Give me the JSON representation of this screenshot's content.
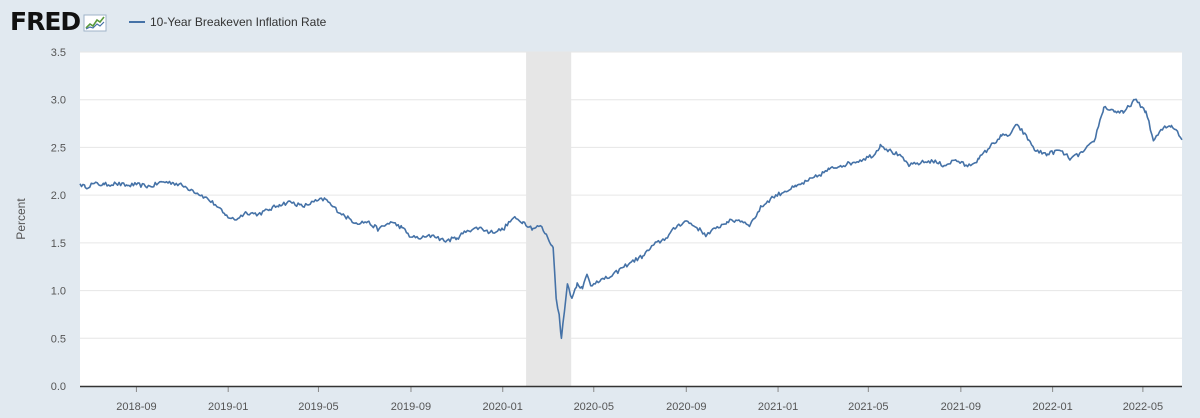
{
  "header": {
    "logo_text": "FRED",
    "logo_icon": "chart-line-icon"
  },
  "colors": {
    "series": "#4572a7",
    "background": "#e1e9f0",
    "plot_bg": "#ffffff",
    "recession": "#e6e6e6",
    "grid": "#e6e6e6"
  },
  "chart_data": {
    "type": "line",
    "title": "",
    "xlabel": "",
    "ylabel": "Percent",
    "ylim": [
      0,
      3.5
    ],
    "yticks": [
      "0.0",
      "0.5",
      "1.0",
      "1.5",
      "2.0",
      "2.5",
      "3.0",
      "3.5"
    ],
    "xlim": [
      "2018-06-18",
      "2022-06-22"
    ],
    "xticks": [
      "2018-09",
      "2019-01",
      "2019-05",
      "2019-09",
      "2020-01",
      "2020-05",
      "2020-09",
      "2021-01",
      "2021-05",
      "2021-09",
      "2022-01",
      "2022-05"
    ],
    "grid": true,
    "legend": "top-left",
    "recession_band": [
      "2020-02-01",
      "2020-04-01"
    ],
    "series": [
      {
        "name": "10-Year Breakeven Inflation Rate",
        "color": "#4572a7",
        "points": [
          [
            "2018-06-18",
            2.12
          ],
          [
            "2018-06-25",
            2.08
          ],
          [
            "2018-07-05",
            2.12
          ],
          [
            "2018-07-20",
            2.11
          ],
          [
            "2018-08-05",
            2.12
          ],
          [
            "2018-08-20",
            2.1
          ],
          [
            "2018-09-01",
            2.11
          ],
          [
            "2018-09-20",
            2.09
          ],
          [
            "2018-10-05",
            2.14
          ],
          [
            "2018-10-20",
            2.13
          ],
          [
            "2018-11-01",
            2.1
          ],
          [
            "2018-11-15",
            2.05
          ],
          [
            "2018-12-01",
            1.98
          ],
          [
            "2018-12-15",
            1.9
          ],
          [
            "2018-12-28",
            1.79
          ],
          [
            "2019-01-10",
            1.74
          ],
          [
            "2019-01-25",
            1.82
          ],
          [
            "2019-02-10",
            1.8
          ],
          [
            "2019-02-25",
            1.85
          ],
          [
            "2019-03-10",
            1.9
          ],
          [
            "2019-03-25",
            1.93
          ],
          [
            "2019-04-10",
            1.88
          ],
          [
            "2019-04-25",
            1.93
          ],
          [
            "2019-05-10",
            1.96
          ],
          [
            "2019-05-20",
            1.88
          ],
          [
            "2019-06-05",
            1.78
          ],
          [
            "2019-06-20",
            1.71
          ],
          [
            "2019-07-05",
            1.72
          ],
          [
            "2019-07-20",
            1.64
          ],
          [
            "2019-08-05",
            1.72
          ],
          [
            "2019-08-20",
            1.66
          ],
          [
            "2019-09-01",
            1.56
          ],
          [
            "2019-09-15",
            1.55
          ],
          [
            "2019-10-01",
            1.58
          ],
          [
            "2019-10-15",
            1.52
          ],
          [
            "2019-11-01",
            1.55
          ],
          [
            "2019-11-15",
            1.63
          ],
          [
            "2019-12-01",
            1.66
          ],
          [
            "2019-12-15",
            1.61
          ],
          [
            "2020-01-01",
            1.64
          ],
          [
            "2020-01-15",
            1.76
          ],
          [
            "2020-01-28",
            1.72
          ],
          [
            "2020-02-10",
            1.65
          ],
          [
            "2020-02-20",
            1.68
          ],
          [
            "2020-03-01",
            1.55
          ],
          [
            "2020-03-08",
            1.45
          ],
          [
            "2020-03-12",
            0.92
          ],
          [
            "2020-03-16",
            0.75
          ],
          [
            "2020-03-19",
            0.5
          ],
          [
            "2020-03-23",
            0.78
          ],
          [
            "2020-03-27",
            1.07
          ],
          [
            "2020-04-02",
            0.92
          ],
          [
            "2020-04-09",
            1.08
          ],
          [
            "2020-04-16",
            1.02
          ],
          [
            "2020-04-22",
            1.17
          ],
          [
            "2020-04-27",
            1.05
          ],
          [
            "2020-05-05",
            1.1
          ],
          [
            "2020-05-15",
            1.12
          ],
          [
            "2020-05-25",
            1.15
          ],
          [
            "2020-06-08",
            1.24
          ],
          [
            "2020-06-20",
            1.3
          ],
          [
            "2020-07-05",
            1.36
          ],
          [
            "2020-07-20",
            1.48
          ],
          [
            "2020-08-05",
            1.55
          ],
          [
            "2020-08-20",
            1.68
          ],
          [
            "2020-09-01",
            1.73
          ],
          [
            "2020-09-15",
            1.66
          ],
          [
            "2020-09-28",
            1.58
          ],
          [
            "2020-10-10",
            1.65
          ],
          [
            "2020-10-25",
            1.72
          ],
          [
            "2020-11-10",
            1.74
          ],
          [
            "2020-11-25",
            1.69
          ],
          [
            "2020-12-10",
            1.88
          ],
          [
            "2020-12-25",
            1.98
          ],
          [
            "2021-01-10",
            2.04
          ],
          [
            "2021-01-25",
            2.09
          ],
          [
            "2021-02-10",
            2.15
          ],
          [
            "2021-02-25",
            2.21
          ],
          [
            "2021-03-10",
            2.27
          ],
          [
            "2021-03-25",
            2.31
          ],
          [
            "2021-04-10",
            2.34
          ],
          [
            "2021-04-25",
            2.38
          ],
          [
            "2021-05-10",
            2.43
          ],
          [
            "2021-05-17",
            2.53
          ],
          [
            "2021-05-28",
            2.47
          ],
          [
            "2021-06-10",
            2.42
          ],
          [
            "2021-06-25",
            2.31
          ],
          [
            "2021-07-10",
            2.34
          ],
          [
            "2021-07-25",
            2.36
          ],
          [
            "2021-08-10",
            2.31
          ],
          [
            "2021-08-25",
            2.37
          ],
          [
            "2021-09-10",
            2.3
          ],
          [
            "2021-09-25",
            2.38
          ],
          [
            "2021-10-10",
            2.51
          ],
          [
            "2021-10-25",
            2.62
          ],
          [
            "2021-11-05",
            2.63
          ],
          [
            "2021-11-15",
            2.74
          ],
          [
            "2021-11-30",
            2.58
          ],
          [
            "2021-12-10",
            2.46
          ],
          [
            "2021-12-25",
            2.43
          ],
          [
            "2022-01-10",
            2.47
          ],
          [
            "2022-01-25",
            2.38
          ],
          [
            "2022-02-10",
            2.45
          ],
          [
            "2022-02-25",
            2.56
          ],
          [
            "2022-03-10",
            2.92
          ],
          [
            "2022-03-25",
            2.88
          ],
          [
            "2022-04-05",
            2.86
          ],
          [
            "2022-04-20",
            3.0
          ],
          [
            "2022-05-05",
            2.88
          ],
          [
            "2022-05-15",
            2.57
          ],
          [
            "2022-05-28",
            2.7
          ],
          [
            "2022-06-08",
            2.73
          ],
          [
            "2022-06-16",
            2.67
          ],
          [
            "2022-06-22",
            2.58
          ]
        ]
      }
    ]
  }
}
